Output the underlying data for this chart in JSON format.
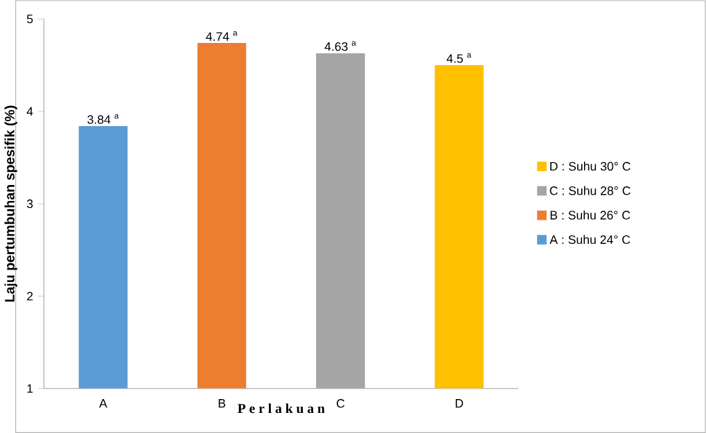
{
  "chart_data": {
    "type": "bar",
    "xlabel": "P e r l a k u a n",
    "ylabel": "Laju pertumbuhan spesifik (%)",
    "categories": [
      "A",
      "B",
      "C",
      "D"
    ],
    "series": [
      {
        "name": "A : Suhu 24° C",
        "color": "#5b9bd5",
        "values": [
          3.84,
          null,
          null,
          null
        ],
        "value_labels": [
          "3.84 $^{a}$",
          null,
          null,
          null
        ]
      },
      {
        "name": "B : Suhu 26° C",
        "color": "#ed7d31",
        "values": [
          null,
          4.74,
          null,
          null
        ],
        "value_labels": [
          null,
          "4.74 $^{a}$",
          null,
          null
        ]
      },
      {
        "name": "C : Suhu 28° C",
        "color": "#a5a5a5",
        "values": [
          null,
          null,
          4.63,
          null
        ],
        "value_labels": [
          null,
          null,
          "4.63 $^{a}$",
          null
        ]
      },
      {
        "name": "D : Suhu 30° C",
        "color": "#ffc000",
        "values": [
          null,
          null,
          null,
          4.5
        ],
        "value_labels": [
          null,
          null,
          null,
          "4.5 $^{a}$"
        ]
      }
    ],
    "ylim": [
      1,
      5
    ],
    "yticks": [
      1,
      2,
      3,
      4,
      5
    ],
    "legend": "right",
    "grid": false
  }
}
